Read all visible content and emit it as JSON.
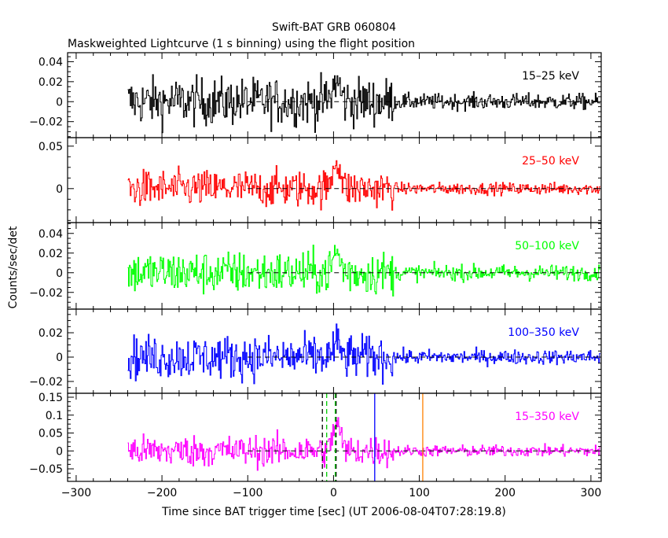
{
  "chart_data": {
    "type": "line",
    "title": "Swift-BAT GRB 060804",
    "subtitle": "Maskweighted Lightcurve (1 s binning) using the flight position",
    "xlabel": "Time since BAT trigger time [sec] (UT 2006-08-04T07:28:19.8)",
    "ylabel": "Counts/sec/det",
    "xlim": [
      -310,
      312
    ],
    "xticks": [
      -300,
      -200,
      -100,
      0,
      100,
      200,
      300
    ],
    "xtick_labels": [
      "−300",
      "−200",
      "−100",
      "0",
      "100",
      "200",
      "300"
    ],
    "grid": false,
    "data_range": {
      "start": -240,
      "end": 310,
      "binning_s": 1
    },
    "panels": [
      {
        "label": "15–25 keV",
        "color": "#000000",
        "ylim": [
          -0.036,
          0.049
        ],
        "yticks": [
          -0.02,
          0,
          0.02,
          0.04
        ],
        "ytick_labels": [
          "−0.02",
          "0",
          "0.02",
          "0.04"
        ],
        "noise_before": 0.012,
        "noise_after": 0.004,
        "peak": 0.02
      },
      {
        "label": "25–50 keV",
        "color": "#ff0000",
        "ylim": [
          -0.04,
          0.06
        ],
        "yticks": [
          0,
          0.05
        ],
        "ytick_labels": [
          "0",
          "0.05"
        ],
        "noise_before": 0.011,
        "noise_after": 0.0035,
        "peak": 0.035
      },
      {
        "label": "50–100 keV",
        "color": "#00ff00",
        "ylim": [
          -0.037,
          0.051
        ],
        "yticks": [
          -0.02,
          0,
          0.02,
          0.04
        ],
        "ytick_labels": [
          "−0.02",
          "0",
          "0.02",
          "0.04"
        ],
        "noise_before": 0.011,
        "noise_after": 0.004,
        "peak": 0.02
      },
      {
        "label": "100–350 keV",
        "color": "#0000ff",
        "ylim": [
          -0.0297,
          0.0394
        ],
        "yticks": [
          -0.02,
          0,
          0.02
        ],
        "ytick_labels": [
          "−0.02",
          "0",
          "0.02"
        ],
        "noise_before": 0.009,
        "noise_after": 0.003,
        "peak": 0.01
      },
      {
        "label": "15–350 keV",
        "color": "#ff00ff",
        "ylim": [
          -0.085,
          0.161
        ],
        "yticks": [
          -0.05,
          0,
          0.05,
          0.1,
          0.15
        ],
        "ytick_labels": [
          "−0.05",
          "0",
          "0.05",
          "0.1",
          "0.15"
        ],
        "noise_before": 0.022,
        "noise_after": 0.008,
        "peak": 0.08
      }
    ],
    "quiet_transition_s": 70,
    "zero_line_start": -100,
    "markers": [
      {
        "x": -13,
        "color": "#000000",
        "style": "dashed"
      },
      {
        "x": 3,
        "color": "#000000",
        "style": "dashed"
      },
      {
        "x": -8,
        "color": "#00cc00",
        "style": "dashed"
      },
      {
        "x": 2,
        "color": "#00cc00",
        "style": "dashed"
      },
      {
        "x": 48,
        "color": "#0000ff",
        "style": "solid"
      },
      {
        "x": 104,
        "color": "#ff8000",
        "style": "solid"
      }
    ]
  }
}
